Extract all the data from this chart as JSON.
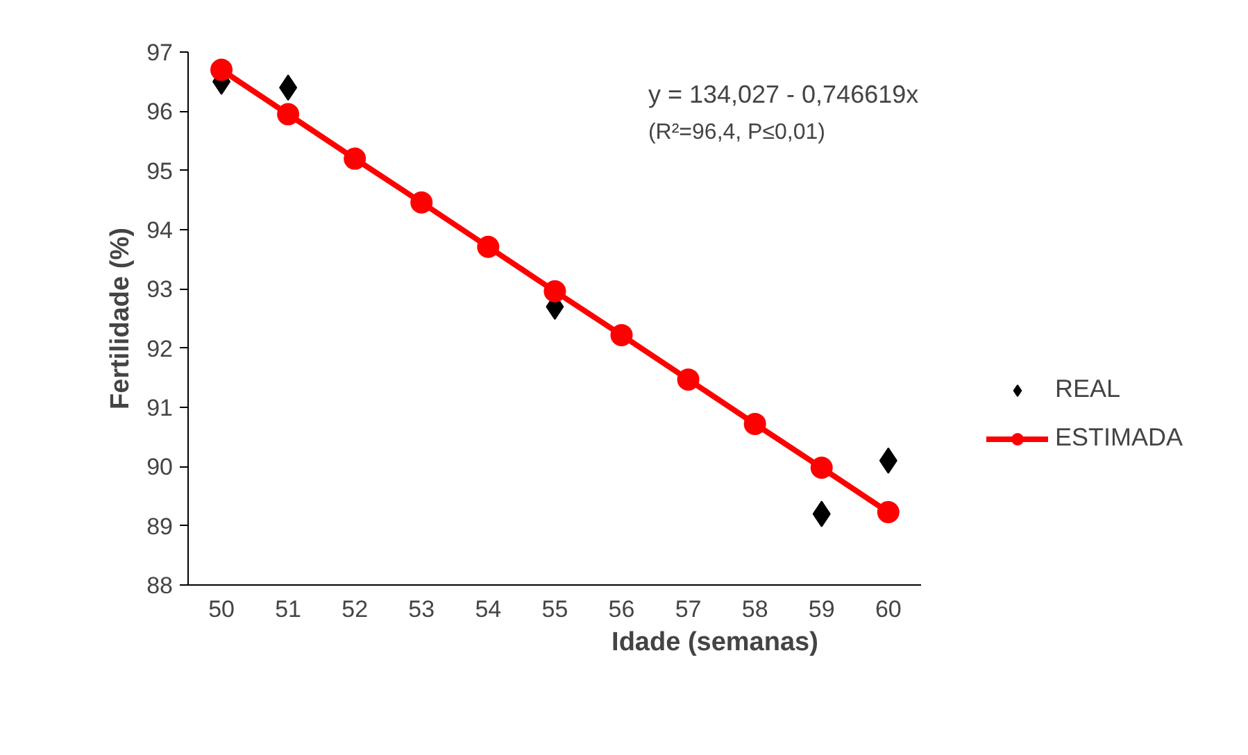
{
  "chart_data": {
    "type": "line",
    "xlabel": "Idade (semanas)",
    "ylabel": "Fertilidade (%)",
    "categories": [
      "50",
      "51",
      "52",
      "53",
      "54",
      "55",
      "56",
      "57",
      "58",
      "59",
      "60"
    ],
    "ylim": [
      88,
      97
    ],
    "yticks": [
      88,
      89,
      90,
      91,
      92,
      93,
      94,
      95,
      96,
      97
    ],
    "grid": false,
    "legend": "right",
    "series": [
      {
        "name": "REAL",
        "type": "scatter",
        "marker": "diamond",
        "color": "#000000",
        "values": [
          96.5,
          96.4,
          null,
          null,
          null,
          92.7,
          null,
          null,
          null,
          89.2,
          90.1
        ]
      },
      {
        "name": "ESTIMADA",
        "marker": "circle",
        "line_style": "solid",
        "color": "#ff0000",
        "values": [
          96.7,
          95.95,
          95.2,
          94.46,
          93.71,
          92.96,
          92.22,
          91.47,
          90.72,
          89.98,
          89.23
        ]
      }
    ],
    "annotations": [
      "y = 134,027 - 0,746619x",
      "(R²=96,4, P≤0,01)"
    ]
  }
}
